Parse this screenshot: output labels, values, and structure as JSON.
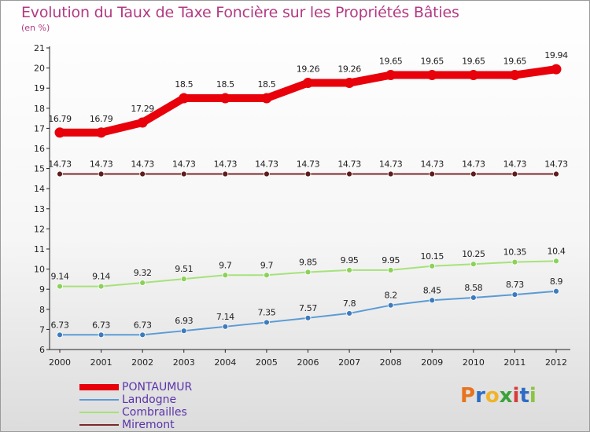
{
  "title": "Evolution du Taux de Taxe Foncière sur les Propriétés Bâties",
  "subtitle": "(en %)",
  "logo": {
    "text": "Proxiti",
    "letter_colors": [
      "#e8731c",
      "#2c6cc4",
      "#f0b429",
      "#3aa23a",
      "#d83b3b",
      "#2c6cc4",
      "#8bc43f"
    ]
  },
  "chart_data": {
    "type": "line",
    "title": "Evolution du Taux de Taxe Foncière sur les Propriétés Bâties",
    "subtitle": "(en %)",
    "x": [
      "2000",
      "2001",
      "2002",
      "2003",
      "2004",
      "2005",
      "2006",
      "2007",
      "2008",
      "2009",
      "2010",
      "2011",
      "2012"
    ],
    "ylim": [
      6,
      21
    ],
    "yticks": [
      6,
      7,
      8,
      9,
      10,
      11,
      12,
      13,
      14,
      15,
      16,
      17,
      18,
      19,
      20,
      21
    ],
    "grid": false,
    "legend_position": "bottom-left",
    "series": [
      {
        "name": "PONTAUMUR",
        "color": "#e8000b",
        "style": "thick",
        "values": [
          16.79,
          16.79,
          17.29,
          18.5,
          18.5,
          18.5,
          19.26,
          19.26,
          19.65,
          19.65,
          19.65,
          19.65,
          19.94
        ],
        "labels": [
          "16.79",
          "16.79",
          "17.29",
          "18.5",
          "18.5",
          "18.5",
          "19.26",
          "19.26",
          "19.65",
          "19.65",
          "19.65",
          "19.65",
          "19.94"
        ]
      },
      {
        "name": "Landogne",
        "color": "#5b9bd5",
        "marker": "#3d7bbd",
        "values": [
          6.73,
          6.73,
          6.73,
          6.93,
          7.14,
          7.35,
          7.57,
          7.8,
          8.2,
          8.45,
          8.58,
          8.73,
          8.9
        ],
        "labels": [
          "6.73",
          "6.73",
          "6.73",
          "6.93",
          "7.14",
          "7.35",
          "7.57",
          "7.8",
          "8.2",
          "8.45",
          "8.58",
          "8.73",
          "8.9"
        ]
      },
      {
        "name": "Combrailles",
        "color": "#a6e27a",
        "marker": "#8bd15a",
        "values": [
          9.14,
          9.14,
          9.32,
          9.51,
          9.7,
          9.7,
          9.85,
          9.95,
          9.95,
          10.15,
          10.25,
          10.35,
          10.4
        ],
        "labels": [
          "9.14",
          "9.14",
          "9.32",
          "9.51",
          "9.7",
          "9.7",
          "9.85",
          "9.95",
          "9.95",
          "10.15",
          "10.25",
          "10.35",
          "10.4"
        ]
      },
      {
        "name": "Miremont",
        "color": "#7a2a2a",
        "marker": "#5e1c1c",
        "values": [
          14.73,
          14.73,
          14.73,
          14.73,
          14.73,
          14.73,
          14.73,
          14.73,
          14.73,
          14.73,
          14.73,
          14.73,
          14.73
        ],
        "labels": [
          "14.73",
          "14.73",
          "14.73",
          "14.73",
          "14.73",
          "14.73",
          "14.73",
          "14.73",
          "14.73",
          "14.73",
          "14.73",
          "14.73",
          "14.73"
        ]
      }
    ]
  }
}
